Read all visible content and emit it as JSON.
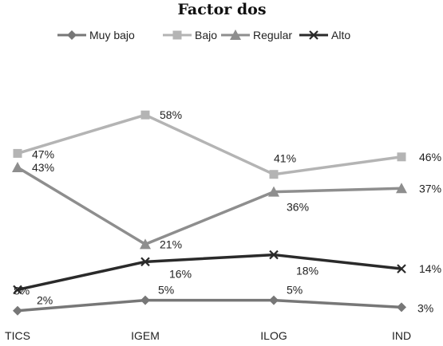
{
  "chart_data": {
    "type": "line",
    "title": "Factor dos",
    "xlabel": "",
    "ylabel": "",
    "ylim": [
      0,
      65
    ],
    "grid": false,
    "legend_position": "top",
    "categories": [
      "TICS",
      "IGEM",
      "ILOG",
      "IND"
    ],
    "series": [
      {
        "name": "Muy bajo",
        "values": [
          2,
          5,
          5,
          3
        ],
        "labels": [
          "2%",
          "5%",
          "5%",
          "3%"
        ],
        "color": "#777777",
        "marker": "diamond"
      },
      {
        "name": "Bajo",
        "values": [
          47,
          58,
          41,
          46
        ],
        "labels": [
          "47%",
          "58%",
          "41%",
          "46%"
        ],
        "color": "#b4b4b4",
        "marker": "square"
      },
      {
        "name": "Regular",
        "values": [
          43,
          21,
          36,
          37
        ],
        "labels": [
          "43%",
          "21%",
          "36%",
          "37%"
        ],
        "color": "#8e8e8e",
        "marker": "triangle"
      },
      {
        "name": "Alto",
        "values": [
          8,
          16,
          18,
          14
        ],
        "labels": [
          "8%",
          "16%",
          "18%",
          "14%"
        ],
        "color": "#2a2a2a",
        "marker": "x"
      }
    ]
  }
}
